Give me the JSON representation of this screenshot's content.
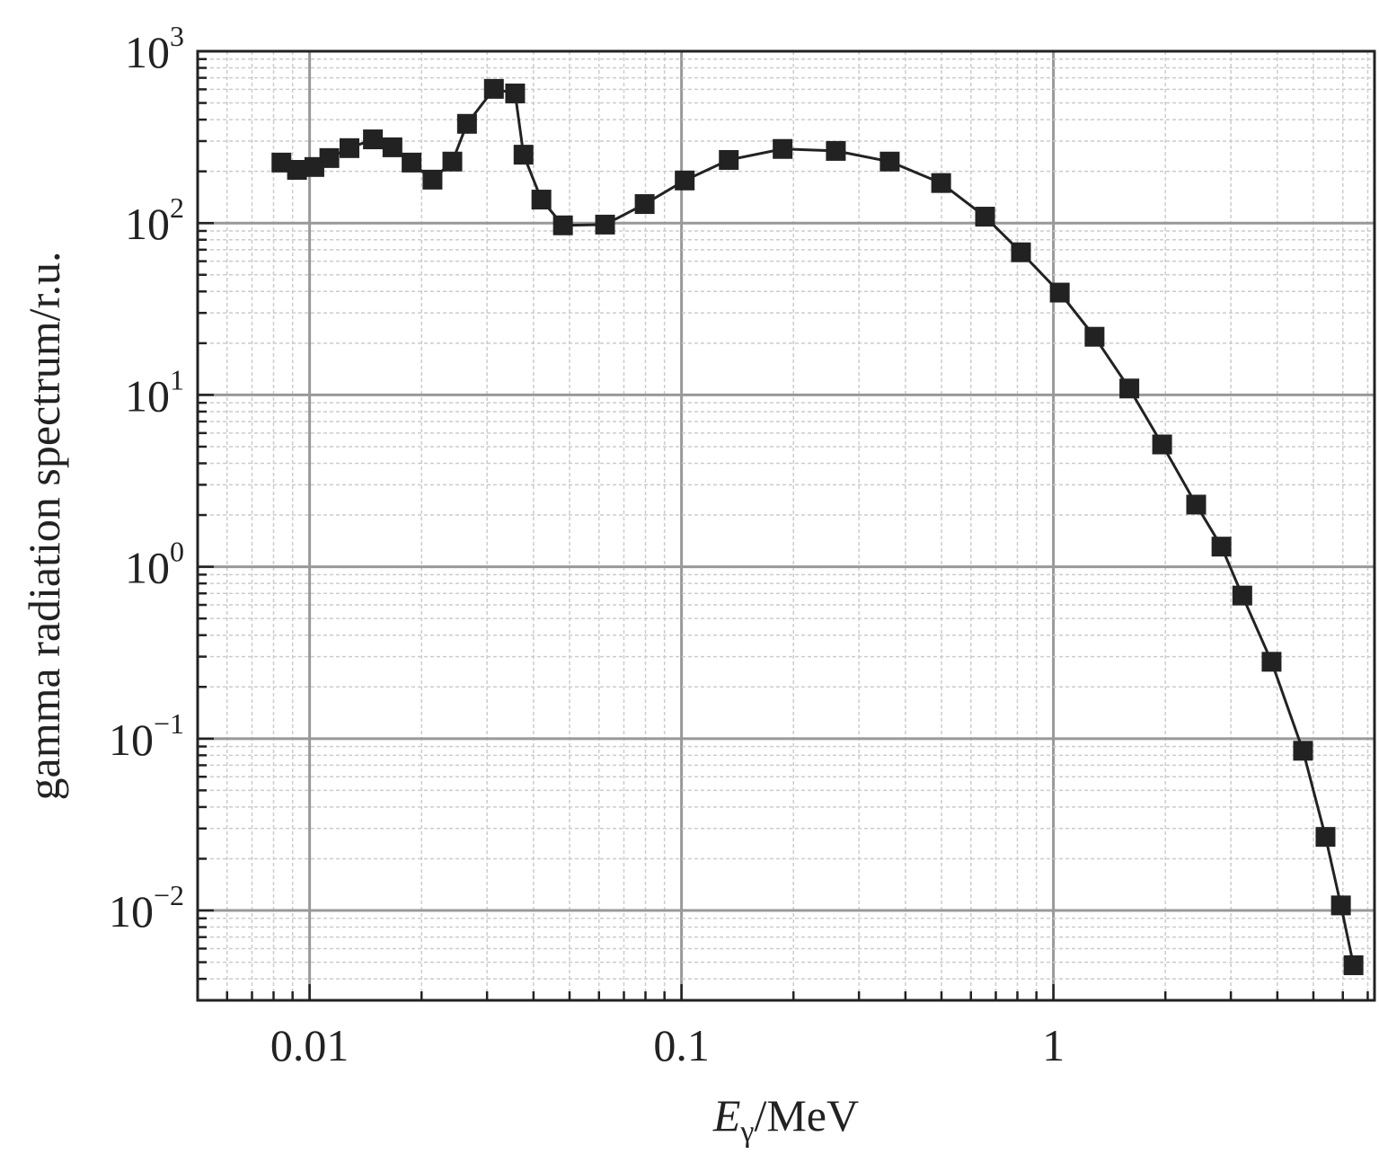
{
  "chart_data": {
    "type": "line",
    "title": "",
    "xlabel": {
      "main": "E",
      "sub": "γ",
      "unit": "/MeV"
    },
    "ylabel": "gamma radiation spectrum/r.u.",
    "xscale": "log",
    "yscale": "log",
    "xlim": [
      0.005,
      7.3
    ],
    "ylim": [
      0.003,
      1000
    ],
    "grid": true,
    "xticks": [
      {
        "value": 0.01,
        "label": "0.01"
      },
      {
        "value": 0.1,
        "label": "0.1"
      },
      {
        "value": 1,
        "label": "1"
      }
    ],
    "yticks": [
      {
        "value": 1000,
        "base": "10",
        "exp": "3"
      },
      {
        "value": 100,
        "base": "10",
        "exp": "2"
      },
      {
        "value": 10,
        "base": "10",
        "exp": "1"
      },
      {
        "value": 1,
        "base": "10",
        "exp": "0"
      },
      {
        "value": 0.1,
        "base": "10",
        "exp": "−1"
      },
      {
        "value": 0.01,
        "base": "10",
        "exp": "−2"
      }
    ],
    "series": [
      {
        "name": "spectrum",
        "marker": "square",
        "color": "#222222",
        "x": [
          0.0084,
          0.00925,
          0.0103,
          0.0113,
          0.0128,
          0.0148,
          0.0167,
          0.0188,
          0.0214,
          0.0242,
          0.0265,
          0.0313,
          0.0357,
          0.0376,
          0.042,
          0.048,
          0.0623,
          0.0796,
          0.102,
          0.134,
          0.187,
          0.26,
          0.363,
          0.499,
          0.655,
          0.818,
          1.04,
          1.29,
          1.6,
          1.96,
          2.42,
          2.83,
          3.22,
          3.86,
          4.69,
          5.39,
          5.93,
          6.41
        ],
        "y": [
          225,
          204,
          212,
          239,
          273,
          307,
          276,
          225,
          179,
          228,
          378,
          604,
          568,
          250,
          137,
          97,
          98,
          129,
          177,
          233,
          270,
          263,
          228,
          171,
          109,
          67.6,
          39.4,
          21.8,
          10.9,
          5.15,
          2.3,
          1.31,
          0.68,
          0.28,
          0.085,
          0.0268,
          0.0107,
          0.0048
        ]
      }
    ]
  }
}
